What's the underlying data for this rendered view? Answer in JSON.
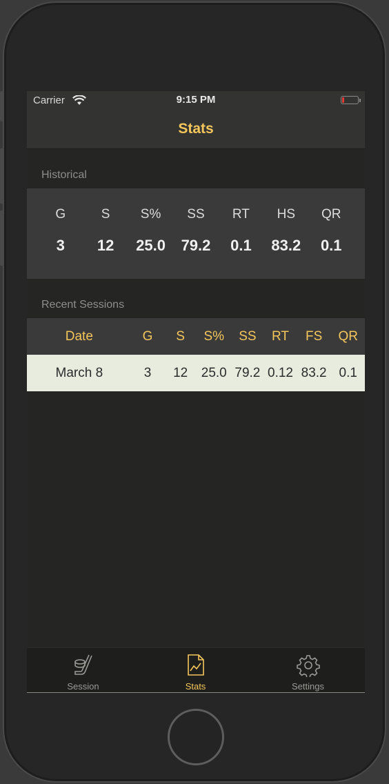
{
  "status_bar": {
    "carrier": "Carrier",
    "time": "9:15 PM",
    "battery_level": 0.1
  },
  "navbar": {
    "title": "Stats"
  },
  "historical": {
    "header": "Historical",
    "columns": [
      "G",
      "S",
      "S%",
      "SS",
      "RT",
      "HS",
      "QR"
    ],
    "values": [
      "3",
      "12",
      "25.0",
      "79.2",
      "0.1",
      "83.2",
      "0.1"
    ]
  },
  "recent": {
    "header": "Recent Sessions",
    "columns": [
      "Date",
      "G",
      "S",
      "S%",
      "SS",
      "RT",
      "FS",
      "QR"
    ],
    "rows": [
      [
        "March 8",
        "3",
        "12",
        "25.0",
        "79.2",
        "0.12",
        "83.2",
        "0.1"
      ]
    ]
  },
  "tabbar": {
    "items": [
      {
        "label": "Session",
        "icon": "hockey-stick-puck-icon"
      },
      {
        "label": "Stats",
        "icon": "chart-document-icon"
      },
      {
        "label": "Settings",
        "icon": "gear-icon"
      }
    ],
    "active_index": 1
  },
  "colors": {
    "accent": "#f5c65c",
    "row_highlight": "#e8ecdf",
    "battery_low": "#e23a34"
  }
}
